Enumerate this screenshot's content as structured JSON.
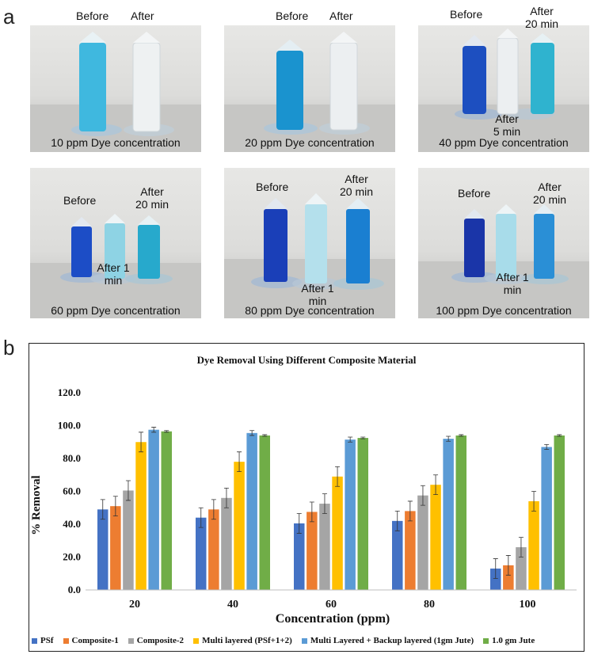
{
  "panel_a": {
    "letter": "a",
    "photos": [
      {
        "labels": [
          "Before",
          "After"
        ],
        "caption": "10 ppm Dye concentration"
      },
      {
        "labels": [
          "Before",
          "After"
        ],
        "caption": "20 ppm Dye concentration"
      },
      {
        "labels": [
          "Before",
          "After 5 min",
          "After 20 min"
        ],
        "caption": "40 ppm Dye concentration"
      },
      {
        "labels": [
          "Before",
          "After 1 min",
          "After 20 min"
        ],
        "caption": "60 ppm Dye concentration"
      },
      {
        "labels": [
          "Before",
          "After 1 min",
          "After 20 min"
        ],
        "caption": "80 ppm Dye concentration"
      },
      {
        "labels": [
          "Before",
          "After 1 min",
          "After 20 min"
        ],
        "caption": "100 ppm Dye concentration"
      }
    ]
  },
  "panel_b": {
    "letter": "b"
  },
  "chart_data": {
    "type": "bar",
    "title": "Dye Removal Using Different Composite Material",
    "xlabel": "Concentration (ppm)",
    "ylabel": "% Removal",
    "ylim": [
      0,
      120
    ],
    "yticks": [
      "0.0",
      "20.0",
      "40.0",
      "60.0",
      "80.0",
      "100.0",
      "120.0"
    ],
    "categories": [
      "20",
      "40",
      "60",
      "80",
      "100"
    ],
    "series": [
      {
        "name": "PSf",
        "color": "#4472c4",
        "values": [
          49,
          44,
          40.5,
          42,
          13
        ],
        "errors": [
          6,
          6,
          6,
          6,
          6
        ]
      },
      {
        "name": "Composite-1",
        "color": "#ed7d31",
        "values": [
          51,
          49,
          47.5,
          48,
          15
        ],
        "errors": [
          6,
          6,
          6,
          6,
          6
        ]
      },
      {
        "name": "Composite-2",
        "color": "#a5a5a5",
        "values": [
          60.5,
          56,
          52.5,
          57.5,
          26
        ],
        "errors": [
          6,
          6,
          6,
          6,
          6
        ]
      },
      {
        "name": "Multi layered (PSf+1+2)",
        "color": "#ffc000",
        "values": [
          90,
          78,
          69,
          64,
          54
        ],
        "errors": [
          6,
          6,
          6,
          6,
          6
        ]
      },
      {
        "name": "Multi Layered + Backup layered (1gm Jute)",
        "color": "#5b9bd5",
        "values": [
          97.5,
          95.5,
          91.5,
          92,
          87
        ],
        "errors": [
          1.5,
          1.5,
          1.5,
          1.5,
          1.5
        ]
      },
      {
        "name": "1.0 gm Jute",
        "color": "#70ad47",
        "values": [
          96.5,
          94,
          92.5,
          94,
          94
        ],
        "errors": [
          0.5,
          0.5,
          0.5,
          0.5,
          0.5
        ]
      }
    ]
  }
}
